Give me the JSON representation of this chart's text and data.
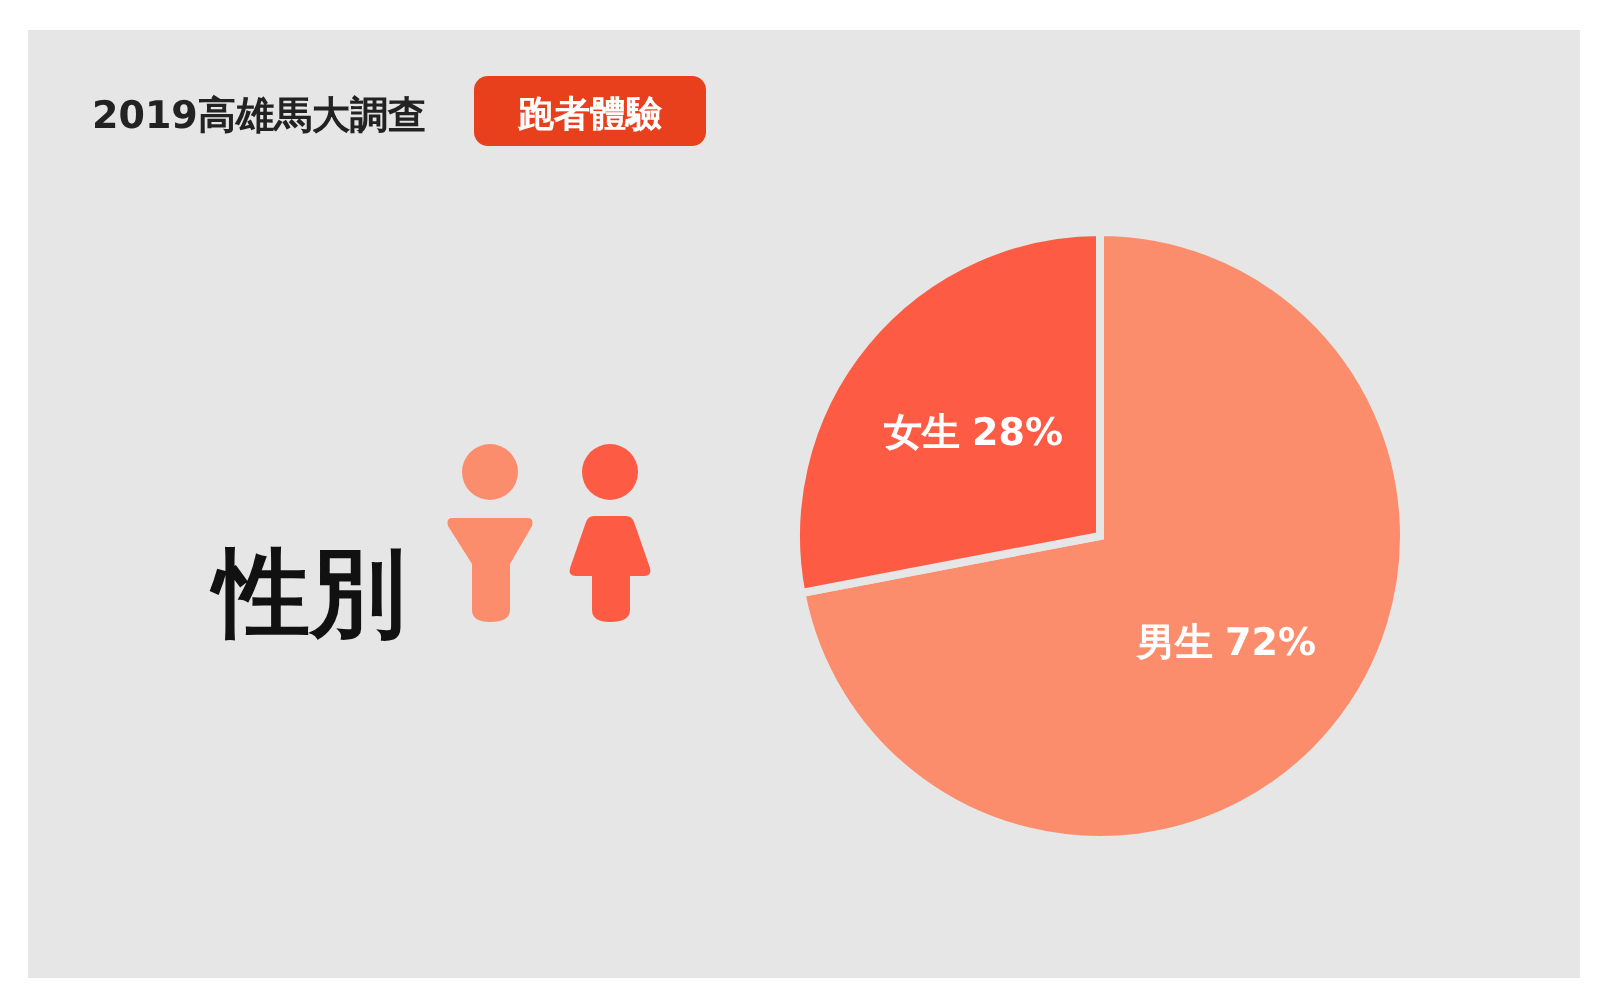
{
  "chart_data": {
    "type": "pie",
    "title": "2019高雄馬大調查",
    "subtitle": "跑者體驗",
    "categories": [
      "男生",
      "女生"
    ],
    "values": [
      72,
      28
    ],
    "colors": [
      "#fc8d6c",
      "#fe5b45"
    ],
    "value_labels": [
      "72%",
      "28%"
    ],
    "annotations": [
      "性別"
    ]
  }
}
